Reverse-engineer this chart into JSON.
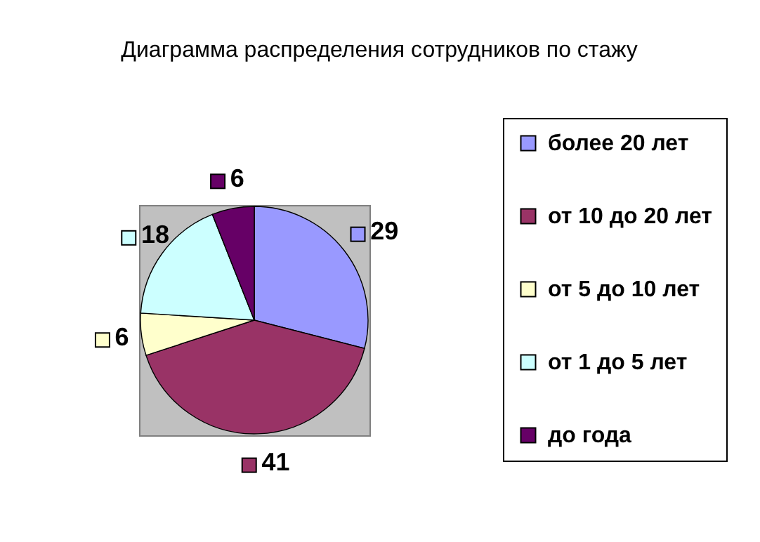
{
  "chart_data": {
    "type": "pie",
    "title": "Диаграмма распределения сотрудников по стажу",
    "categories": [
      "более 20 лет",
      "от 10 до 20 лет",
      "от 5 до 10 лет",
      "от 1 до 5 лет",
      "до года"
    ],
    "values": [
      29,
      41,
      6,
      18,
      6
    ],
    "colors": [
      "#9999ff",
      "#993366",
      "#ffffcc",
      "#ccffff",
      "#660066"
    ],
    "data_labels": true,
    "legend": "right"
  }
}
